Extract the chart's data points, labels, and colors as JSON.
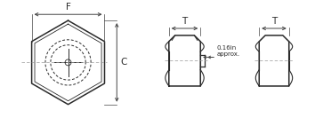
{
  "bg_color": "#ffffff",
  "line_color": "#2a2a2a",
  "dim_color": "#444444",
  "dash_color": "#999999",
  "label_F": "F",
  "label_C": "C",
  "label_T1": "T",
  "label_T2": "T",
  "annotation": "0.16in\napprox.",
  "fig_width": 3.54,
  "fig_height": 1.42,
  "dpi": 100
}
